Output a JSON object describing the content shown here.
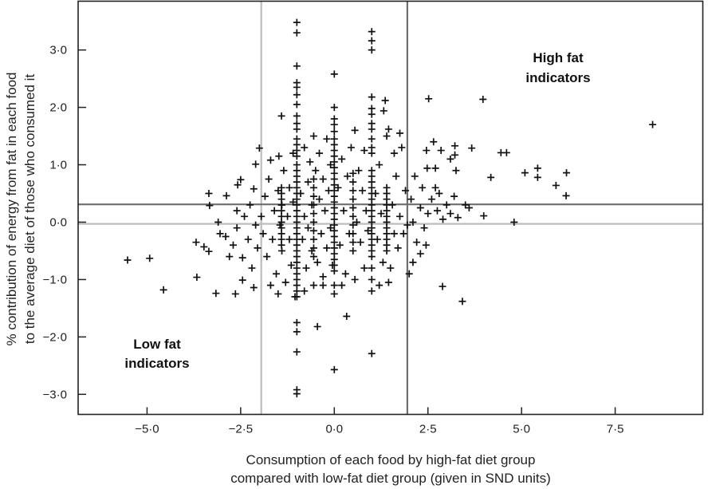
{
  "chart_data": {
    "type": "scatter",
    "marker": "plus",
    "xlabel": [
      "Consumption of each food by high-fat diet group",
      "compared with low-fat diet group (given in SND units)"
    ],
    "ylabel": [
      "% contribution of energy from fat in each food",
      "to the average diet of those who consumed it"
    ],
    "xlim": [
      -6.84,
      9.84
    ],
    "ylim": [
      -3.35,
      3.85
    ],
    "xticks": [
      -5.0,
      -2.5,
      0.0,
      2.5,
      5.0,
      7.5
    ],
    "xtick_labels": [
      "−5·0",
      "−2·5",
      "0·0",
      "2·5",
      "5·0",
      "7·5"
    ],
    "yticks": [
      3.0,
      2.0,
      1.0,
      0.0,
      -1.0,
      -2.0,
      -3.0
    ],
    "ytick_labels": [
      "3·0",
      "2·0",
      "1·0",
      "0·0",
      "−1·0",
      "−2·0",
      "−3·0"
    ],
    "grid": false,
    "reference_lines": {
      "vertical": [
        {
          "x": -1.95,
          "color": "#bdbdbd"
        },
        {
          "x": 1.95,
          "color": "#6e6e6e"
        }
      ],
      "horizontal": [
        {
          "y": 0.31,
          "color": "#6e6e6e"
        },
        {
          "y": -0.03,
          "color": "#bdbdbd"
        }
      ]
    },
    "annotations": [
      {
        "lines": [
          "High fat",
          "indicators"
        ],
        "x": 6.0,
        "y": 2.85
      },
      {
        "lines": [
          "Low fat",
          "indicators"
        ],
        "x": -4.7,
        "y": -2.1
      }
    ],
    "marker_color": "#111111",
    "points": [
      [
        -5.52,
        -0.66
      ],
      [
        -4.93,
        -0.63
      ],
      [
        -4.56,
        -1.18
      ],
      [
        -3.67,
        -0.96
      ],
      [
        -3.16,
        -1.24
      ],
      [
        -2.64,
        -1.25
      ],
      [
        -2.45,
        -1.01
      ],
      [
        -2.15,
        -1.14
      ],
      [
        -3.69,
        -0.35
      ],
      [
        -3.48,
        -0.43
      ],
      [
        -3.35,
        -0.51
      ],
      [
        -3.33,
        0.29
      ],
      [
        -3.35,
        0.5
      ],
      [
        -3.1,
        0.0
      ],
      [
        -3.05,
        -0.2
      ],
      [
        -2.88,
        0.46
      ],
      [
        -2.58,
        0.65
      ],
      [
        -2.5,
        0.74
      ],
      [
        -2.9,
        -0.25
      ],
      [
        -2.8,
        -0.6
      ],
      [
        -2.7,
        -0.4
      ],
      [
        -2.6,
        -0.1
      ],
      [
        -2.6,
        0.2
      ],
      [
        -2.45,
        -0.62
      ],
      [
        -2.4,
        0.1
      ],
      [
        -2.3,
        -0.3
      ],
      [
        -2.25,
        0.3
      ],
      [
        -2.2,
        -0.8
      ],
      [
        -2.15,
        0.58
      ],
      [
        -2.1,
        -0.05
      ],
      [
        -2.05,
        -0.45
      ],
      [
        -2.0,
        1.29
      ],
      [
        -2.1,
        1.01
      ],
      [
        -1.95,
        0.1
      ],
      [
        -1.9,
        -0.2
      ],
      [
        -1.85,
        0.45
      ],
      [
        -1.8,
        -0.6
      ],
      [
        -1.75,
        0.75
      ],
      [
        -1.7,
        1.08
      ],
      [
        -1.65,
        -0.3
      ],
      [
        -1.6,
        0.2
      ],
      [
        -1.55,
        -0.9
      ],
      [
        -1.5,
        0.55
      ],
      [
        -1.48,
        1.15
      ],
      [
        -1.41,
        1.85
      ],
      [
        -1.45,
        -0.05
      ],
      [
        -1.4,
        0.3
      ],
      [
        -1.4,
        -0.5
      ],
      [
        -1.35,
        0.9
      ],
      [
        -1.3,
        -1.05
      ],
      [
        -1.25,
        0.1
      ],
      [
        -1.2,
        -0.3
      ],
      [
        -1.2,
        0.6
      ],
      [
        -1.15,
        -0.75
      ],
      [
        -1.1,
        1.2
      ],
      [
        -1.1,
        0.35
      ],
      [
        -1.05,
        -1.3
      ],
      [
        -1.7,
        -1.1
      ],
      [
        -1.5,
        -1.25
      ],
      [
        -1.41,
        -0.4
      ],
      [
        -1.41,
        -0.3
      ],
      [
        -1.41,
        -0.2
      ],
      [
        -1.41,
        -0.1
      ],
      [
        -1.41,
        0.0
      ],
      [
        -1.41,
        0.1
      ],
      [
        -1.41,
        0.2
      ],
      [
        -1.41,
        0.3
      ],
      [
        -1.41,
        0.4
      ],
      [
        -1.41,
        0.5
      ],
      [
        -1.41,
        0.6
      ],
      [
        -1.0,
        3.48
      ],
      [
        -1.0,
        3.3
      ],
      [
        -1.0,
        2.72
      ],
      [
        -1.0,
        2.43
      ],
      [
        -1.0,
        2.35
      ],
      [
        -1.0,
        2.22
      ],
      [
        -1.0,
        2.05
      ],
      [
        -1.0,
        1.85
      ],
      [
        -1.0,
        1.72
      ],
      [
        -1.0,
        1.62
      ],
      [
        -1.0,
        1.45
      ],
      [
        -1.0,
        1.35
      ],
      [
        -1.0,
        1.25
      ],
      [
        -1.0,
        1.15
      ],
      [
        -1.0,
        1.0
      ],
      [
        -1.0,
        0.9
      ],
      [
        -1.0,
        0.8
      ],
      [
        -1.0,
        0.7
      ],
      [
        -1.0,
        0.6
      ],
      [
        -1.0,
        0.5
      ],
      [
        -1.0,
        0.4
      ],
      [
        -1.0,
        0.3
      ],
      [
        -1.0,
        0.2
      ],
      [
        -1.0,
        0.1
      ],
      [
        -1.0,
        0.0
      ],
      [
        -1.0,
        -0.1
      ],
      [
        -1.0,
        -0.2
      ],
      [
        -1.0,
        -0.3
      ],
      [
        -1.0,
        -0.4
      ],
      [
        -1.0,
        -0.5
      ],
      [
        -1.0,
        -0.6
      ],
      [
        -1.0,
        -0.7
      ],
      [
        -1.0,
        -0.8
      ],
      [
        -1.0,
        -0.9
      ],
      [
        -1.0,
        -1.0
      ],
      [
        -1.0,
        -1.1
      ],
      [
        -1.0,
        -1.2
      ],
      [
        -1.0,
        -1.3
      ],
      [
        -1.0,
        -1.75
      ],
      [
        -1.0,
        -1.91
      ],
      [
        -1.0,
        -2.26
      ],
      [
        -1.0,
        -2.92
      ],
      [
        -1.0,
        -2.99
      ],
      [
        -0.55,
        -0.6
      ],
      [
        -0.55,
        -0.45
      ],
      [
        -0.55,
        -0.3
      ],
      [
        -0.55,
        -0.15
      ],
      [
        -0.55,
        0.0
      ],
      [
        -0.55,
        0.15
      ],
      [
        -0.55,
        0.3
      ],
      [
        -0.55,
        0.45
      ],
      [
        -0.55,
        0.6
      ],
      [
        -0.55,
        0.75
      ],
      [
        -0.9,
        0.5
      ],
      [
        -0.85,
        -0.3
      ],
      [
        -0.8,
        1.3
      ],
      [
        -0.8,
        0.1
      ],
      [
        -0.75,
        -0.8
      ],
      [
        -0.7,
        0.7
      ],
      [
        -0.7,
        -0.1
      ],
      [
        -0.65,
        1.05
      ],
      [
        -0.6,
        0.3
      ],
      [
        -0.6,
        -0.5
      ],
      [
        -0.55,
        1.5
      ],
      [
        -0.55,
        -1.1
      ],
      [
        -0.5,
        0.9
      ],
      [
        -0.45,
        -1.82
      ],
      [
        -0.45,
        -0.7
      ],
      [
        -0.4,
        0.4
      ],
      [
        -0.4,
        1.2
      ],
      [
        -0.35,
        -0.2
      ],
      [
        -0.3,
        0.75
      ],
      [
        -0.3,
        -0.95
      ],
      [
        -0.25,
        0.2
      ],
      [
        -0.2,
        1.45
      ],
      [
        -0.2,
        -0.45
      ],
      [
        -0.15,
        0.55
      ],
      [
        -0.1,
        -0.1
      ],
      [
        -0.1,
        1.0
      ],
      [
        -0.05,
        -0.75
      ],
      [
        -0.8,
        -1.2
      ],
      [
        -0.3,
        -1.1
      ],
      [
        0.0,
        2.58
      ],
      [
        0.0,
        2.0
      ],
      [
        0.0,
        1.8
      ],
      [
        0.0,
        1.7
      ],
      [
        0.0,
        1.58
      ],
      [
        0.0,
        1.45
      ],
      [
        0.0,
        1.35
      ],
      [
        0.0,
        1.25
      ],
      [
        0.0,
        1.15
      ],
      [
        0.0,
        1.05
      ],
      [
        0.0,
        0.95
      ],
      [
        0.0,
        0.85
      ],
      [
        0.0,
        0.75
      ],
      [
        0.0,
        0.65
      ],
      [
        0.0,
        0.55
      ],
      [
        0.0,
        0.45
      ],
      [
        0.0,
        0.35
      ],
      [
        0.0,
        0.25
      ],
      [
        0.0,
        0.15
      ],
      [
        0.0,
        0.05
      ],
      [
        0.0,
        -0.05
      ],
      [
        0.0,
        -0.15
      ],
      [
        0.0,
        -0.25
      ],
      [
        0.0,
        -0.35
      ],
      [
        0.0,
        -0.45
      ],
      [
        0.0,
        -0.55
      ],
      [
        0.0,
        -0.65
      ],
      [
        0.0,
        -0.75
      ],
      [
        0.0,
        -0.85
      ],
      [
        0.0,
        -1.1
      ],
      [
        0.0,
        -1.25
      ],
      [
        0.0,
        -2.57
      ],
      [
        0.5,
        -0.5
      ],
      [
        0.5,
        -0.35
      ],
      [
        0.5,
        -0.2
      ],
      [
        0.5,
        -0.05
      ],
      [
        0.5,
        0.1
      ],
      [
        0.5,
        0.25
      ],
      [
        0.5,
        0.4
      ],
      [
        0.5,
        0.55
      ],
      [
        0.5,
        0.7
      ],
      [
        0.5,
        0.85
      ],
      [
        0.1,
        0.6
      ],
      [
        0.15,
        -0.4
      ],
      [
        0.2,
        1.1
      ],
      [
        0.25,
        0.2
      ],
      [
        0.3,
        -0.9
      ],
      [
        0.33,
        -1.64
      ],
      [
        0.35,
        0.8
      ],
      [
        0.4,
        -0.2
      ],
      [
        0.45,
        1.3
      ],
      [
        0.55,
        1.6
      ],
      [
        0.6,
        0.0
      ],
      [
        0.65,
        0.9
      ],
      [
        0.7,
        -0.35
      ],
      [
        0.75,
        0.55
      ],
      [
        0.8,
        1.25
      ],
      [
        0.8,
        -0.8
      ],
      [
        0.85,
        0.2
      ],
      [
        0.9,
        -0.15
      ],
      [
        0.55,
        -1.0
      ],
      [
        0.2,
        -1.1
      ],
      [
        1.0,
        3.32
      ],
      [
        1.0,
        3.16
      ],
      [
        1.0,
        3.0
      ],
      [
        1.0,
        2.18
      ],
      [
        1.0,
        1.98
      ],
      [
        1.0,
        1.88
      ],
      [
        1.0,
        1.72
      ],
      [
        1.0,
        1.62
      ],
      [
        1.0,
        1.45
      ],
      [
        1.0,
        1.3
      ],
      [
        1.0,
        1.2
      ],
      [
        1.0,
        0.9
      ],
      [
        1.0,
        0.8
      ],
      [
        1.0,
        0.7
      ],
      [
        1.0,
        0.6
      ],
      [
        1.0,
        0.5
      ],
      [
        1.0,
        0.4
      ],
      [
        1.0,
        0.3
      ],
      [
        1.0,
        0.2
      ],
      [
        1.0,
        0.1
      ],
      [
        1.0,
        0.0
      ],
      [
        1.0,
        -0.1
      ],
      [
        1.0,
        -0.2
      ],
      [
        1.0,
        -0.3
      ],
      [
        1.0,
        -0.4
      ],
      [
        1.0,
        -0.5
      ],
      [
        1.0,
        -0.6
      ],
      [
        1.0,
        -0.8
      ],
      [
        1.0,
        -1.0
      ],
      [
        1.0,
        -1.2
      ],
      [
        1.0,
        -2.29
      ],
      [
        1.4,
        -0.5
      ],
      [
        1.4,
        -0.4
      ],
      [
        1.4,
        -0.3
      ],
      [
        1.4,
        -0.2
      ],
      [
        1.4,
        -0.1
      ],
      [
        1.4,
        0.0
      ],
      [
        1.4,
        0.1
      ],
      [
        1.4,
        0.2
      ],
      [
        1.4,
        0.3
      ],
      [
        1.4,
        0.4
      ],
      [
        1.4,
        0.5
      ],
      [
        1.4,
        0.6
      ],
      [
        1.4,
        1.5
      ],
      [
        1.36,
        2.12
      ],
      [
        1.32,
        1.94
      ],
      [
        1.45,
        1.62
      ],
      [
        1.1,
        0.5
      ],
      [
        1.15,
        -0.3
      ],
      [
        1.2,
        1.0
      ],
      [
        1.25,
        0.15
      ],
      [
        1.3,
        -0.7
      ],
      [
        1.55,
        0.3
      ],
      [
        1.6,
        -0.2
      ],
      [
        1.65,
        0.8
      ],
      [
        1.7,
        -0.45
      ],
      [
        1.75,
        0.1
      ],
      [
        1.8,
        1.3
      ],
      [
        1.85,
        -0.2
      ],
      [
        1.9,
        0.55
      ],
      [
        1.95,
        -0.05
      ],
      [
        1.2,
        -1.1
      ],
      [
        1.5,
        -0.8
      ],
      [
        1.45,
        -1.05
      ],
      [
        1.75,
        1.55
      ],
      [
        1.6,
        1.2
      ],
      [
        2.05,
        0.4
      ],
      [
        2.1,
        0.0
      ],
      [
        2.15,
        0.8
      ],
      [
        2.2,
        -0.35
      ],
      [
        2.3,
        0.25
      ],
      [
        2.35,
        0.6
      ],
      [
        2.4,
        -0.1
      ],
      [
        2.45,
        -0.4
      ],
      [
        2.5,
        0.15
      ],
      [
        2.6,
        0.4
      ],
      [
        2.7,
        0.6
      ],
      [
        2.75,
        0.2
      ],
      [
        2.8,
        0.5
      ],
      [
        2.9,
        0.05
      ],
      [
        3.0,
        0.3
      ],
      [
        3.1,
        0.15
      ],
      [
        3.2,
        0.45
      ],
      [
        3.3,
        0.08
      ],
      [
        3.5,
        0.3
      ],
      [
        3.6,
        0.25
      ],
      [
        2.3,
        -0.55
      ],
      [
        2.1,
        -0.7
      ],
      [
        2.0,
        -0.9
      ],
      [
        2.52,
        2.15
      ],
      [
        3.97,
        2.14
      ],
      [
        8.5,
        1.7
      ],
      [
        4.45,
        1.21
      ],
      [
        4.6,
        1.21
      ],
      [
        5.09,
        0.86
      ],
      [
        5.43,
        0.94
      ],
      [
        5.43,
        0.78
      ],
      [
        6.2,
        0.86
      ],
      [
        5.92,
        0.64
      ],
      [
        6.19,
        0.46
      ],
      [
        4.18,
        0.78
      ],
      [
        4.8,
        0.0
      ],
      [
        3.99,
        0.11
      ],
      [
        3.67,
        1.29
      ],
      [
        3.22,
        1.33
      ],
      [
        3.22,
        1.17
      ],
      [
        3.25,
        0.9
      ],
      [
        3.1,
        1.1
      ],
      [
        2.85,
        1.25
      ],
      [
        2.65,
        1.4
      ],
      [
        2.46,
        1.25
      ],
      [
        2.48,
        0.94
      ],
      [
        2.7,
        0.94
      ],
      [
        2.89,
        -1.12
      ],
      [
        3.42,
        -1.38
      ]
    ]
  }
}
